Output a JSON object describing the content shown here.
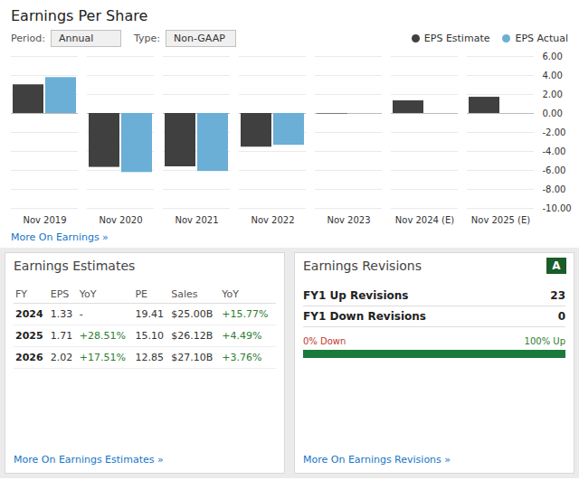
{
  "chart_data": [
    {
      "type": "bar",
      "title": "Earnings Per Share",
      "categories": [
        "Nov 2019",
        "Nov 2020",
        "Nov 2021",
        "Nov 2022",
        "Nov 2023",
        "Nov 2024 (E)",
        "Nov 2025 (E)"
      ],
      "series": [
        {
          "name": "EPS Estimate",
          "color": "#404040",
          "values": [
            3.02,
            -5.68,
            -5.62,
            -3.55,
            -0.05,
            1.33,
            1.71
          ]
        },
        {
          "name": "EPS Actual",
          "color": "#6baed6",
          "values": [
            3.78,
            -6.22,
            -6.11,
            -3.35,
            null,
            null,
            null
          ]
        }
      ],
      "ylim": [
        -10,
        6
      ],
      "yticks": [
        {
          "value": -10,
          "label": "-10.00"
        },
        {
          "value": -8,
          "label": "-8.00"
        },
        {
          "value": -6,
          "label": "-6.00"
        },
        {
          "value": -4,
          "label": "-4.00"
        },
        {
          "value": -2,
          "label": "-2.00"
        },
        {
          "value": 0,
          "label": "0.00"
        },
        {
          "value": 2,
          "label": "2.00"
        },
        {
          "value": 4,
          "label": "4.00"
        },
        {
          "value": 6,
          "label": "6.00"
        }
      ],
      "grid": true,
      "legend": "top right",
      "annotations": [
        "Period:",
        "Annual",
        "Type:",
        "Non-GAAP",
        "More On Earnings »"
      ]
    },
    {
      "type": "table",
      "title": "Earnings Estimates",
      "columns": [
        "FY",
        "EPS",
        "YoY",
        "PE",
        "Sales",
        "YoY"
      ],
      "rows": [
        [
          "2024",
          "1.33",
          "-",
          "19.41",
          "$25.00B",
          "+15.77%"
        ],
        [
          "2025",
          "1.71",
          "+28.51%",
          "15.10",
          "$26.12B",
          "+4.49%"
        ],
        [
          "2026",
          "2.02",
          "+17.51%",
          "12.85",
          "$27.10B",
          "+3.76%"
        ]
      ],
      "annotations": [
        "More On Earnings Estimates »"
      ]
    },
    {
      "type": "progress",
      "title": "Earnings Revisions",
      "categories": [
        "FY1 Up Revisions",
        "FY1 Down Revisions"
      ],
      "values": [
        23,
        0
      ],
      "up_share": 100,
      "color": "#1a7a3c",
      "annotations": [
        "A",
        "0% Down",
        "100% Up",
        "More On Earnings Revisions »"
      ]
    }
  ]
}
